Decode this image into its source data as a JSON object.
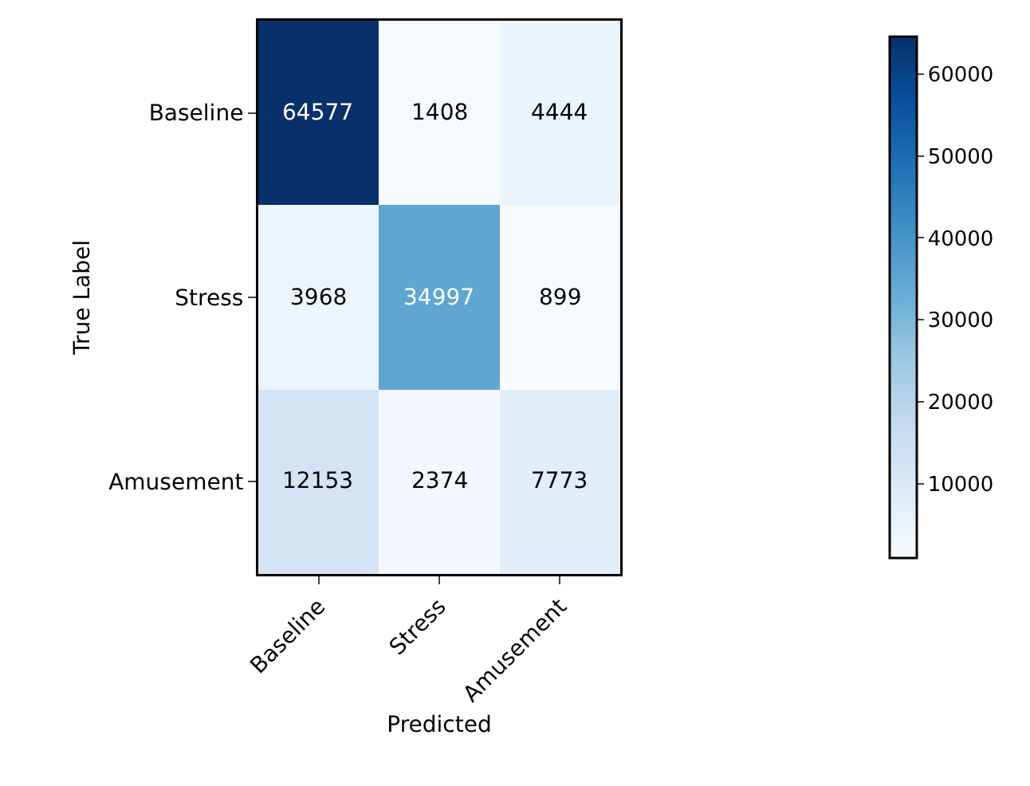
{
  "chart_data": {
    "type": "heatmap",
    "xlabel": "Predicted",
    "ylabel": "True Label",
    "categories": [
      "Baseline",
      "Stress",
      "Amusement"
    ],
    "y_categories": [
      "Baseline",
      "Stress",
      "Amusement"
    ],
    "cells": [
      [
        64577,
        1408,
        4444
      ],
      [
        3968,
        34997,
        899
      ],
      [
        12153,
        2374,
        7773
      ]
    ],
    "data_labels": true,
    "clim": [
      899,
      64577
    ],
    "cticks": [
      10000,
      20000,
      30000,
      40000,
      50000,
      60000
    ]
  }
}
